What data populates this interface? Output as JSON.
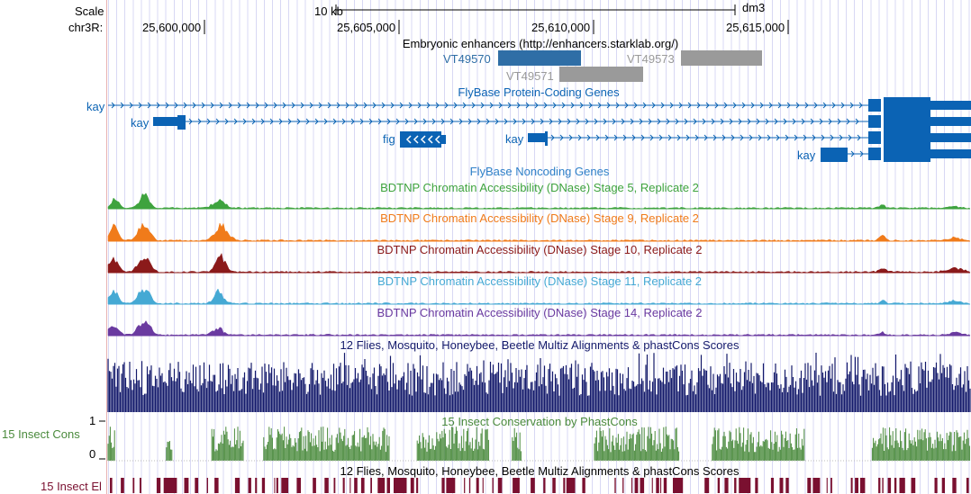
{
  "ruler": {
    "scale_label": "Scale",
    "chrom_label": "chr3R:",
    "scale_bar_label": "10 kb",
    "assembly": "dm3",
    "positions": [
      "25,600,000",
      "25,605,000",
      "25,610,000",
      "25,615,000"
    ]
  },
  "enhancers": {
    "title": "Embryonic enhancers (http://enhancers.starklab.org/)",
    "items": [
      {
        "label": "VT49570",
        "color": "#2f6ea6"
      },
      {
        "label": "VT49571",
        "color": "#9a9a9a"
      },
      {
        "label": "VT49573",
        "color": "#9a9a9a"
      }
    ]
  },
  "genes": {
    "title": "FlyBase Protein-Coding Genes",
    "color": "#0b63b4",
    "labels": [
      "kay",
      "kay",
      "fig",
      "kay",
      "kay"
    ]
  },
  "noncoding": {
    "title": "FlyBase Noncoding Genes",
    "color": "#2f80c8"
  },
  "dnase_tracks": [
    {
      "title": "BDTNP Chromatin Accessibility (DNase) Stage 5, Replicate 2",
      "color": "#3ea33e"
    },
    {
      "title": "BDTNP Chromatin Accessibility (DNase) Stage 9, Replicate 2",
      "color": "#f07b1a"
    },
    {
      "title": "BDTNP Chromatin Accessibility (DNase) Stage 10, Replicate 2",
      "color": "#8b1a1a"
    },
    {
      "title": "BDTNP Chromatin Accessibility (DNase) Stage 11, Replicate 2",
      "color": "#45a9d4"
    },
    {
      "title": "BDTNP Chromatin Accessibility (DNase) Stage 14, Replicate 2",
      "color": "#6a3aa0"
    }
  ],
  "multiz": {
    "title": "12 Flies, Mosquito, Honeybee, Beetle Multiz Alignments & phastCons Scores",
    "color": "#141a6b"
  },
  "phastcons": {
    "title": "15 Insect Conservation by PhastCons",
    "side_label": "15 Insect Cons",
    "axis_max": "1",
    "axis_min": "0",
    "color": "#4a8a3c"
  },
  "elements": {
    "title": "12 Flies, Mosquito, Honeybee, Beetle Multiz Alignments & phastCons Scores",
    "side_label": "15 Insect El",
    "color": "#7a1030"
  }
}
